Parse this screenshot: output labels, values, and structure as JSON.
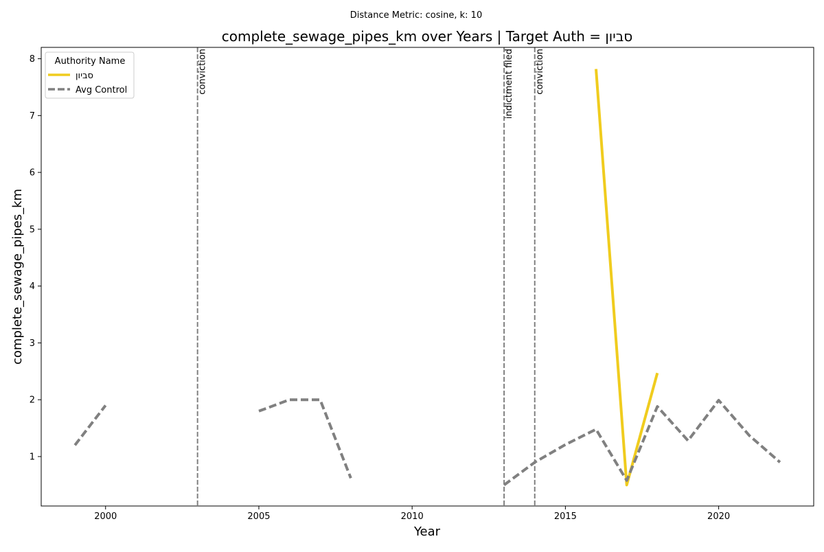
{
  "chart_data": {
    "type": "line",
    "suptitle": "Distance Metric: cosine, k: 10",
    "title": "complete_sewage_pipes_km over Years | Target Auth = סביון",
    "xlabel": "Year",
    "ylabel": "complete_sewage_pipes_km",
    "xlim": [
      1997.9,
      2023.1
    ],
    "ylim": [
      0.13,
      8.2
    ],
    "xticks": [
      2000,
      2005,
      2010,
      2015,
      2020
    ],
    "yticks": [
      1,
      2,
      3,
      4,
      5,
      6,
      7,
      8
    ],
    "legend": {
      "title": "Authority Name",
      "placement": "top-left"
    },
    "series": [
      {
        "name": "סביון",
        "color": "#f0cc1e",
        "style": "solid",
        "points": [
          [
            2016,
            7.82
          ],
          [
            2017,
            0.5
          ],
          [
            2018,
            2.47
          ]
        ]
      },
      {
        "name": "Avg Control",
        "color": "#808080",
        "style": "dashed",
        "segments": [
          [
            [
              1999,
              1.2
            ],
            [
              2000,
              1.9
            ]
          ],
          [
            [
              2005,
              1.8
            ],
            [
              2006,
              2.0
            ],
            [
              2007,
              2.0
            ],
            [
              2008,
              0.62
            ]
          ],
          [
            [
              2013,
              0.5
            ],
            [
              2014,
              0.9
            ],
            [
              2015,
              1.21
            ],
            [
              2016,
              1.48
            ],
            [
              2017,
              0.58
            ],
            [
              2018,
              1.88
            ],
            [
              2019,
              1.28
            ],
            [
              2020,
              1.99
            ],
            [
              2021,
              1.37
            ],
            [
              2022,
              0.9
            ]
          ]
        ]
      }
    ],
    "events": [
      {
        "x": 2003,
        "label": "conviction"
      },
      {
        "x": 2013,
        "label": "indictment filed"
      },
      {
        "x": 2014,
        "label": "conviction"
      }
    ]
  }
}
